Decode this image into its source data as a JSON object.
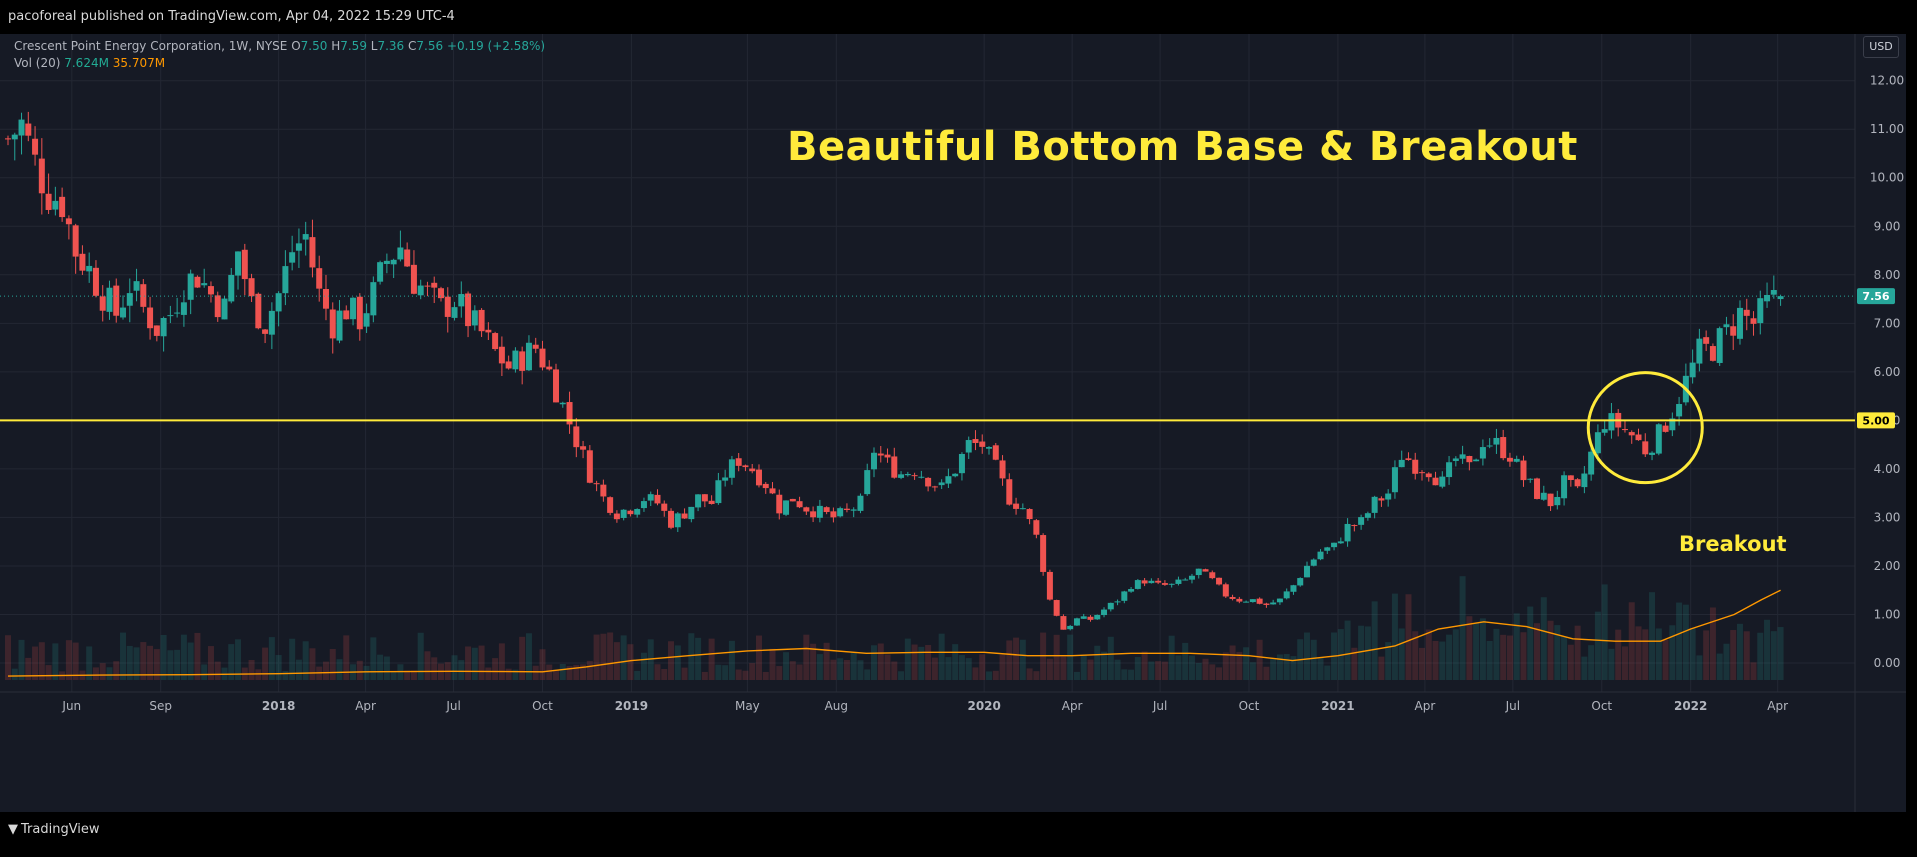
{
  "header": {
    "published": "pacoforeal published on TradingView.com, Apr 04, 2022 15:29 UTC-4"
  },
  "legend": {
    "symbol": "Crescent Point Energy Corporation, 1W, NYSE",
    "o_label": "O",
    "o_value": "7.50",
    "h_label": "H",
    "h_value": "7.59",
    "l_label": "L",
    "l_value": "7.36",
    "c_label": "C",
    "c_value": "7.56",
    "change": "+0.19 (+2.58%)",
    "vol_label": "Vol (20)",
    "vol_value": "7.624M",
    "vol_ma": "35.707M"
  },
  "currency": "USD",
  "annotations": {
    "title": "Beautiful Bottom Base & Breakout",
    "breakout": "Breakout"
  },
  "footer": {
    "brand": "TradingView"
  },
  "colors": {
    "background": "#161a25",
    "up": "#26a69a",
    "down": "#ef5350",
    "grid": "#232733",
    "annotation": "#ffeb3b",
    "volume_ma": "#ff9800"
  },
  "chart_data": {
    "type": "candlestick",
    "title": "Crescent Point Energy Corporation, 1W, NYSE",
    "ylim": [
      -0.35,
      12.55
    ],
    "y_ticks": [
      0,
      1,
      2,
      3,
      4,
      5,
      6,
      7,
      8,
      9,
      10,
      11,
      12
    ],
    "y_tick_labels": [
      "0.00",
      "1.00",
      "2.00",
      "3.00",
      "4.00",
      "5.00",
      "6.00",
      "7.00",
      "8.00",
      "9.00",
      "10.00",
      "11.00",
      "12.00"
    ],
    "x_start": "2017-03-27",
    "x_end": "2022-06-20",
    "x_ticks": [
      {
        "label": "Jun",
        "date": "2017-06-01",
        "bold": false
      },
      {
        "label": "Sep",
        "date": "2017-09-01",
        "bold": false
      },
      {
        "label": "2018",
        "date": "2018-01-01",
        "bold": true
      },
      {
        "label": "Apr",
        "date": "2018-04-01",
        "bold": false
      },
      {
        "label": "Jul",
        "date": "2018-07-01",
        "bold": false
      },
      {
        "label": "Oct",
        "date": "2018-10-01",
        "bold": false
      },
      {
        "label": "2019",
        "date": "2019-01-01",
        "bold": true
      },
      {
        "label": "May",
        "date": "2019-05-01",
        "bold": false
      },
      {
        "label": "Aug",
        "date": "2019-08-01",
        "bold": false
      },
      {
        "label": "2020",
        "date": "2020-01-01",
        "bold": true
      },
      {
        "label": "Apr",
        "date": "2020-04-01",
        "bold": false
      },
      {
        "label": "Jul",
        "date": "2020-07-01",
        "bold": false
      },
      {
        "label": "Oct",
        "date": "2020-10-01",
        "bold": false
      },
      {
        "label": "2021",
        "date": "2021-01-01",
        "bold": true
      },
      {
        "label": "Apr",
        "date": "2021-04-01",
        "bold": false
      },
      {
        "label": "Jul",
        "date": "2021-07-01",
        "bold": false
      },
      {
        "label": "Oct",
        "date": "2021-10-01",
        "bold": false
      },
      {
        "label": "2022",
        "date": "2022-01-01",
        "bold": true
      },
      {
        "label": "Apr",
        "date": "2022-04-01",
        "bold": false
      }
    ],
    "current_price": 7.56,
    "current_price_label": "7.56",
    "horizontal_line": {
      "value": 5.0,
      "label": "5.00"
    },
    "breakout_circle": {
      "date": "2021-11-15",
      "value": 4.85
    },
    "closes": [
      {
        "d": "2017-03-27",
        "c": 10.8
      },
      {
        "d": "2017-04-10",
        "c": 11.1
      },
      {
        "d": "2017-04-24",
        "c": 10.3
      },
      {
        "d": "2017-05-08",
        "c": 9.7
      },
      {
        "d": "2017-05-22",
        "c": 9.5
      },
      {
        "d": "2017-06-05",
        "c": 8.5
      },
      {
        "d": "2017-06-19",
        "c": 8.1
      },
      {
        "d": "2017-07-03",
        "c": 7.6
      },
      {
        "d": "2017-07-17",
        "c": 7.2
      },
      {
        "d": "2017-07-31",
        "c": 7.8
      },
      {
        "d": "2017-08-14",
        "c": 7.3
      },
      {
        "d": "2017-08-28",
        "c": 6.9
      },
      {
        "d": "2017-09-11",
        "c": 7.2
      },
      {
        "d": "2017-09-25",
        "c": 7.8
      },
      {
        "d": "2017-10-09",
        "c": 8.0
      },
      {
        "d": "2017-10-23",
        "c": 7.6
      },
      {
        "d": "2017-11-06",
        "c": 7.3
      },
      {
        "d": "2017-11-20",
        "c": 8.5
      },
      {
        "d": "2017-12-04",
        "c": 7.4
      },
      {
        "d": "2017-12-18",
        "c": 7.0
      },
      {
        "d": "2018-01-01",
        "c": 7.6
      },
      {
        "d": "2018-01-15",
        "c": 8.5
      },
      {
        "d": "2018-01-29",
        "c": 8.8
      },
      {
        "d": "2018-02-12",
        "c": 7.6
      },
      {
        "d": "2018-02-26",
        "c": 7.0
      },
      {
        "d": "2018-03-12",
        "c": 7.3
      },
      {
        "d": "2018-03-26",
        "c": 7.1
      },
      {
        "d": "2018-04-09",
        "c": 7.6
      },
      {
        "d": "2018-04-23",
        "c": 8.3
      },
      {
        "d": "2018-05-07",
        "c": 8.6
      },
      {
        "d": "2018-05-21",
        "c": 7.9
      },
      {
        "d": "2018-06-04",
        "c": 7.6
      },
      {
        "d": "2018-06-18",
        "c": 7.3
      },
      {
        "d": "2018-07-02",
        "c": 7.5
      },
      {
        "d": "2018-07-16",
        "c": 7.1
      },
      {
        "d": "2018-07-30",
        "c": 6.8
      },
      {
        "d": "2018-08-13",
        "c": 6.4
      },
      {
        "d": "2018-08-27",
        "c": 6.1
      },
      {
        "d": "2018-09-10",
        "c": 6.3
      },
      {
        "d": "2018-09-24",
        "c": 6.5
      },
      {
        "d": "2018-10-08",
        "c": 6.0
      },
      {
        "d": "2018-10-22",
        "c": 5.3
      },
      {
        "d": "2018-11-05",
        "c": 4.6
      },
      {
        "d": "2018-11-19",
        "c": 3.9
      },
      {
        "d": "2018-12-03",
        "c": 3.4
      },
      {
        "d": "2018-12-17",
        "c": 3.1
      },
      {
        "d": "2018-12-31",
        "c": 3.2
      },
      {
        "d": "2019-01-14",
        "c": 3.4
      },
      {
        "d": "2019-01-28",
        "c": 3.3
      },
      {
        "d": "2019-02-11",
        "c": 2.9
      },
      {
        "d": "2019-02-25",
        "c": 3.1
      },
      {
        "d": "2019-03-11",
        "c": 3.4
      },
      {
        "d": "2019-03-25",
        "c": 3.3
      },
      {
        "d": "2019-04-08",
        "c": 3.9
      },
      {
        "d": "2019-04-22",
        "c": 4.2
      },
      {
        "d": "2019-05-06",
        "c": 4.0
      },
      {
        "d": "2019-05-20",
        "c": 3.7
      },
      {
        "d": "2019-06-03",
        "c": 3.2
      },
      {
        "d": "2019-06-17",
        "c": 3.4
      },
      {
        "d": "2019-07-01",
        "c": 3.2
      },
      {
        "d": "2019-07-15",
        "c": 3.1
      },
      {
        "d": "2019-07-29",
        "c": 3.0
      },
      {
        "d": "2019-08-12",
        "c": 3.1
      },
      {
        "d": "2019-08-26",
        "c": 3.3
      },
      {
        "d": "2019-09-09",
        "c": 4.4
      },
      {
        "d": "2019-09-23",
        "c": 4.1
      },
      {
        "d": "2019-10-07",
        "c": 3.9
      },
      {
        "d": "2019-10-21",
        "c": 4.0
      },
      {
        "d": "2019-11-04",
        "c": 3.8
      },
      {
        "d": "2019-11-18",
        "c": 3.6
      },
      {
        "d": "2019-12-02",
        "c": 4.0
      },
      {
        "d": "2019-12-16",
        "c": 4.5
      },
      {
        "d": "2019-12-30",
        "c": 4.5
      },
      {
        "d": "2020-01-13",
        "c": 4.0
      },
      {
        "d": "2020-01-27",
        "c": 3.4
      },
      {
        "d": "2020-02-10",
        "c": 3.2
      },
      {
        "d": "2020-02-24",
        "c": 2.6
      },
      {
        "d": "2020-03-09",
        "c": 1.3
      },
      {
        "d": "2020-03-23",
        "c": 0.7
      },
      {
        "d": "2020-04-06",
        "c": 0.9
      },
      {
        "d": "2020-04-20",
        "c": 0.9
      },
      {
        "d": "2020-05-04",
        "c": 1.1
      },
      {
        "d": "2020-05-18",
        "c": 1.3
      },
      {
        "d": "2020-06-01",
        "c": 1.6
      },
      {
        "d": "2020-06-15",
        "c": 1.7
      },
      {
        "d": "2020-06-29",
        "c": 1.6
      },
      {
        "d": "2020-07-13",
        "c": 1.6
      },
      {
        "d": "2020-07-27",
        "c": 1.7
      },
      {
        "d": "2020-08-10",
        "c": 1.9
      },
      {
        "d": "2020-08-24",
        "c": 1.7
      },
      {
        "d": "2020-09-07",
        "c": 1.4
      },
      {
        "d": "2020-09-21",
        "c": 1.3
      },
      {
        "d": "2020-10-05",
        "c": 1.3
      },
      {
        "d": "2020-10-19",
        "c": 1.2
      },
      {
        "d": "2020-11-02",
        "c": 1.3
      },
      {
        "d": "2020-11-16",
        "c": 1.6
      },
      {
        "d": "2020-11-30",
        "c": 2.0
      },
      {
        "d": "2020-12-14",
        "c": 2.3
      },
      {
        "d": "2020-12-28",
        "c": 2.4
      },
      {
        "d": "2021-01-11",
        "c": 2.8
      },
      {
        "d": "2021-01-25",
        "c": 2.9
      },
      {
        "d": "2021-02-08",
        "c": 3.3
      },
      {
        "d": "2021-02-22",
        "c": 3.5
      },
      {
        "d": "2021-03-08",
        "c": 4.3
      },
      {
        "d": "2021-03-22",
        "c": 4.1
      },
      {
        "d": "2021-04-05",
        "c": 4.0
      },
      {
        "d": "2021-04-19",
        "c": 3.7
      },
      {
        "d": "2021-05-03",
        "c": 4.2
      },
      {
        "d": "2021-05-17",
        "c": 4.0
      },
      {
        "d": "2021-05-31",
        "c": 4.6
      },
      {
        "d": "2021-06-14",
        "c": 4.5
      },
      {
        "d": "2021-06-28",
        "c": 4.3
      },
      {
        "d": "2021-07-12",
        "c": 3.8
      },
      {
        "d": "2021-07-26",
        "c": 3.5
      },
      {
        "d": "2021-08-09",
        "c": 3.3
      },
      {
        "d": "2021-08-23",
        "c": 3.7
      },
      {
        "d": "2021-09-06",
        "c": 3.5
      },
      {
        "d": "2021-09-20",
        "c": 4.3
      },
      {
        "d": "2021-10-04",
        "c": 5.0
      },
      {
        "d": "2021-10-18",
        "c": 4.9
      },
      {
        "d": "2021-11-01",
        "c": 4.7
      },
      {
        "d": "2021-11-15",
        "c": 4.4
      },
      {
        "d": "2021-11-29",
        "c": 4.7
      },
      {
        "d": "2021-12-13",
        "c": 5.2
      },
      {
        "d": "2021-12-27",
        "c": 5.8
      },
      {
        "d": "2022-01-10",
        "c": 6.4
      },
      {
        "d": "2022-01-24",
        "c": 6.5
      },
      {
        "d": "2022-02-07",
        "c": 6.8
      },
      {
        "d": "2022-02-21",
        "c": 7.2
      },
      {
        "d": "2022-03-07",
        "c": 7.0
      },
      {
        "d": "2022-03-21",
        "c": 7.37
      },
      {
        "d": "2022-04-04",
        "c": 7.56
      }
    ],
    "volume_ma": [
      {
        "d": "2017-03-27",
        "v": -0.27
      },
      {
        "d": "2017-07-01",
        "v": -0.25
      },
      {
        "d": "2017-10-01",
        "v": -0.24
      },
      {
        "d": "2018-01-01",
        "v": -0.22
      },
      {
        "d": "2018-04-01",
        "v": -0.18
      },
      {
        "d": "2018-07-01",
        "v": -0.17
      },
      {
        "d": "2018-10-01",
        "v": -0.18
      },
      {
        "d": "2018-11-15",
        "v": -0.08
      },
      {
        "d": "2019-01-01",
        "v": 0.05
      },
      {
        "d": "2019-03-01",
        "v": 0.15
      },
      {
        "d": "2019-05-01",
        "v": 0.25
      },
      {
        "d": "2019-07-01",
        "v": 0.3
      },
      {
        "d": "2019-09-01",
        "v": 0.2
      },
      {
        "d": "2019-11-01",
        "v": 0.22
      },
      {
        "d": "2020-01-01",
        "v": 0.22
      },
      {
        "d": "2020-02-15",
        "v": 0.15
      },
      {
        "d": "2020-04-01",
        "v": 0.15
      },
      {
        "d": "2020-06-01",
        "v": 0.2
      },
      {
        "d": "2020-08-01",
        "v": 0.2
      },
      {
        "d": "2020-10-01",
        "v": 0.15
      },
      {
        "d": "2020-11-15",
        "v": 0.05
      },
      {
        "d": "2021-01-01",
        "v": 0.15
      },
      {
        "d": "2021-03-01",
        "v": 0.35
      },
      {
        "d": "2021-04-15",
        "v": 0.7
      },
      {
        "d": "2021-06-01",
        "v": 0.85
      },
      {
        "d": "2021-07-15",
        "v": 0.75
      },
      {
        "d": "2021-09-01",
        "v": 0.5
      },
      {
        "d": "2021-10-15",
        "v": 0.45
      },
      {
        "d": "2021-12-01",
        "v": 0.45
      },
      {
        "d": "2022-01-01",
        "v": 0.7
      },
      {
        "d": "2022-02-15",
        "v": 1.0
      },
      {
        "d": "2022-03-15",
        "v": 1.3
      },
      {
        "d": "2022-04-04",
        "v": 1.5
      }
    ]
  }
}
